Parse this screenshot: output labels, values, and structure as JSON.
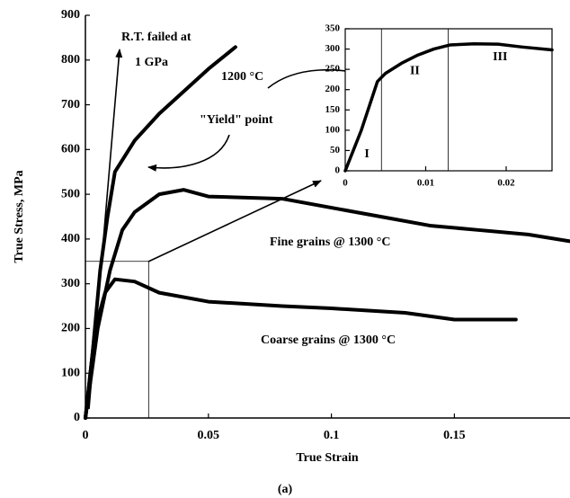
{
  "chart_data": [
    {
      "type": "line",
      "xlabel": "True Strain",
      "ylabel": "True Stress, MPa",
      "caption": "(a)",
      "xlim": [
        0,
        0.197
      ],
      "ylim": [
        0,
        900
      ],
      "xticks": [
        0,
        0.05,
        0.1,
        0.15
      ],
      "yticks": [
        0,
        100,
        200,
        300,
        400,
        500,
        600,
        700,
        800,
        900
      ],
      "annotations": [
        "R.T. failed at",
        "1 GPa",
        "\"Yield\" point"
      ],
      "series": [
        {
          "name": "1200 °C",
          "color": "#000000",
          "x": [
            0,
            0.003,
            0.006,
            0.009,
            0.012,
            0.02,
            0.03,
            0.04,
            0.05,
            0.061
          ],
          "values": [
            0,
            150,
            330,
            450,
            550,
            620,
            680,
            730,
            780,
            829
          ]
        },
        {
          "name": "Fine grains @ 1300 °C",
          "color": "#000000",
          "x": [
            0,
            0.005,
            0.01,
            0.015,
            0.02,
            0.03,
            0.04,
            0.05,
            0.08,
            0.1,
            0.12,
            0.14,
            0.16,
            0.18,
            0.197
          ],
          "values": [
            0,
            200,
            330,
            420,
            460,
            500,
            510,
            495,
            490,
            470,
            450,
            430,
            420,
            410,
            395
          ]
        },
        {
          "name": "Coarse grains @ 1300 °C",
          "color": "#000000",
          "x": [
            0,
            0.004,
            0.008,
            0.012,
            0.02,
            0.03,
            0.05,
            0.08,
            0.1,
            0.13,
            0.15,
            0.175
          ],
          "values": [
            0,
            200,
            280,
            310,
            305,
            280,
            260,
            250,
            245,
            235,
            220,
            220
          ]
        }
      ]
    },
    {
      "type": "line",
      "xlim": [
        0,
        0.0257
      ],
      "ylim": [
        0,
        350
      ],
      "xticks": [
        0,
        0.01,
        0.02
      ],
      "yticks": [
        0,
        50,
        100,
        150,
        200,
        250,
        300,
        350
      ],
      "boundaries": [
        0.0045,
        0.0128
      ],
      "regions": [
        "I",
        "II",
        "III"
      ],
      "series": [
        {
          "color": "#000000",
          "x": [
            0,
            0.001,
            0.002,
            0.003,
            0.004,
            0.005,
            0.007,
            0.009,
            0.011,
            0.013,
            0.016,
            0.019,
            0.022,
            0.0257
          ],
          "values": [
            0,
            50,
            100,
            160,
            220,
            240,
            265,
            285,
            300,
            310,
            313,
            312,
            305,
            298
          ]
        }
      ]
    }
  ]
}
